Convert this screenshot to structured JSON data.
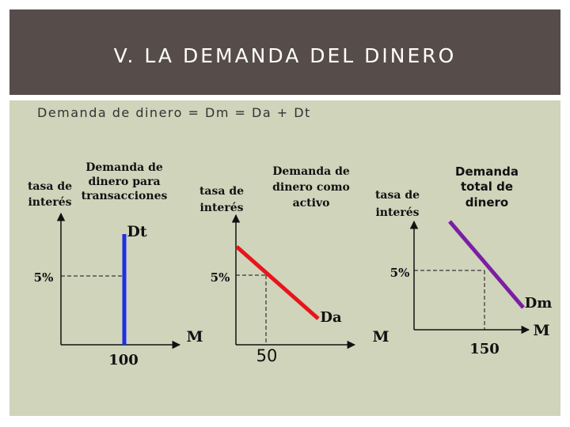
{
  "slide": {
    "title": "V. LA DEMANDA DEL DINERO",
    "subtitle": "Demanda de dinero = Dm = Da + Dt"
  },
  "colors": {
    "title_bar": "#564c49",
    "content_bg": "#cfd4bb",
    "dt_line": "#1f2ee6",
    "da_line": "#e8141a",
    "dm_line": "#7b1fa2"
  },
  "panels": [
    {
      "header_lines": [
        "Demanda de",
        "dinero para",
        "transacciones"
      ],
      "y_axis_lines": [
        "tasa de",
        "interés"
      ],
      "rate_label": "5%",
      "x_axis_label": "M",
      "x_value_label": "100",
      "curve_label": "Dt"
    },
    {
      "header_lines": [
        "Demanda de",
        "dinero como",
        "activo"
      ],
      "y_axis_lines": [
        "tasa de",
        "interés"
      ],
      "rate_label": "5%",
      "x_axis_label": "M",
      "x_value_label": "50",
      "curve_label": "Da"
    },
    {
      "header_lines": [
        "Demanda",
        "total de",
        "dinero"
      ],
      "y_axis_lines": [
        "tasa de",
        "interés"
      ],
      "rate_label": "5%",
      "x_axis_label": "M",
      "x_value_label": "150",
      "curve_label": "Dm"
    }
  ]
}
